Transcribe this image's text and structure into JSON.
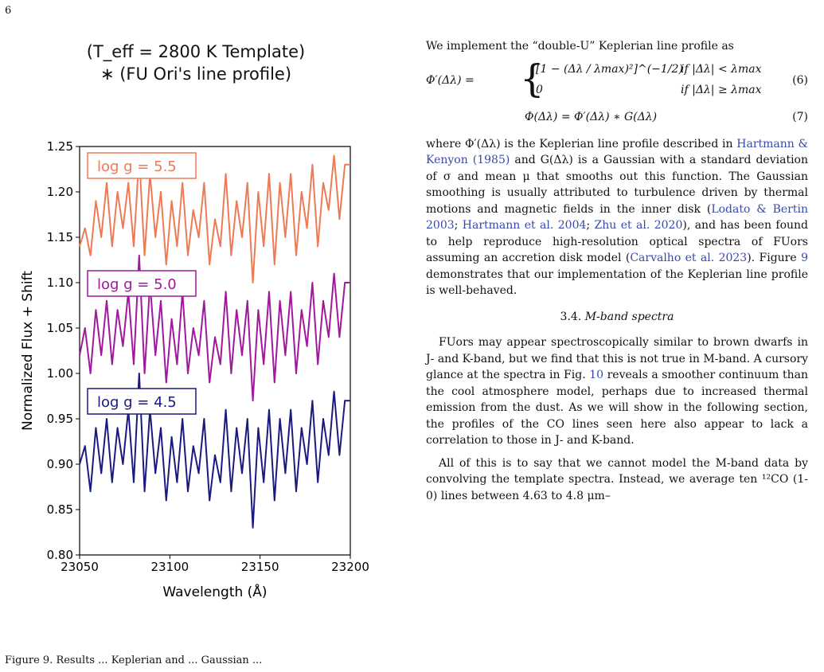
{
  "page_number": "6",
  "figure": {
    "title_line1": "(T_eff = 2800 K Template)",
    "title_line2": "∗ (FU Ori's line profile)",
    "caption_fragment": "Figure 9. Results ... Keplerian and ... Gaussian ...",
    "chart_data": {
      "type": "line",
      "xlabel": "Wavelength (Å)",
      "ylabel": "Normalized Flux + Shift",
      "xlim": [
        23050,
        23200
      ],
      "ylim": [
        0.8,
        1.25
      ],
      "x_ticks": [
        "23050",
        "23100",
        "23150",
        "23200"
      ],
      "y_ticks": [
        "0.80",
        "0.85",
        "0.90",
        "0.95",
        "1.00",
        "1.05",
        "1.10",
        "1.15",
        "1.20",
        "1.25"
      ],
      "grid": false,
      "series": [
        {
          "name": "log g = 5.5",
          "color": "#ee7a55",
          "x": [
            23050,
            23053,
            23056,
            23059,
            23062,
            23065,
            23068,
            23071,
            23074,
            23077,
            23080,
            23083,
            23086,
            23089,
            23092,
            23095,
            23098,
            23101,
            23104,
            23107,
            23110,
            23113,
            23116,
            23119,
            23122,
            23125,
            23128,
            23131,
            23134,
            23137,
            23140,
            23143,
            23146,
            23149,
            23152,
            23155,
            23158,
            23161,
            23164,
            23167,
            23170,
            23173,
            23176,
            23179,
            23182,
            23185,
            23188,
            23191,
            23194,
            23197,
            23200
          ],
          "y": [
            1.14,
            1.16,
            1.13,
            1.19,
            1.15,
            1.21,
            1.14,
            1.2,
            1.16,
            1.21,
            1.14,
            1.24,
            1.13,
            1.22,
            1.15,
            1.2,
            1.12,
            1.19,
            1.14,
            1.21,
            1.13,
            1.18,
            1.15,
            1.21,
            1.12,
            1.17,
            1.14,
            1.22,
            1.13,
            1.19,
            1.15,
            1.21,
            1.1,
            1.2,
            1.14,
            1.22,
            1.12,
            1.21,
            1.15,
            1.22,
            1.13,
            1.2,
            1.16,
            1.23,
            1.14,
            1.21,
            1.18,
            1.24,
            1.17,
            1.23,
            1.23
          ]
        },
        {
          "name": "log g = 5.0",
          "color": "#a0189e",
          "x": [
            23050,
            23053,
            23056,
            23059,
            23062,
            23065,
            23068,
            23071,
            23074,
            23077,
            23080,
            23083,
            23086,
            23089,
            23092,
            23095,
            23098,
            23101,
            23104,
            23107,
            23110,
            23113,
            23116,
            23119,
            23122,
            23125,
            23128,
            23131,
            23134,
            23137,
            23140,
            23143,
            23146,
            23149,
            23152,
            23155,
            23158,
            23161,
            23164,
            23167,
            23170,
            23173,
            23176,
            23179,
            23182,
            23185,
            23188,
            23191,
            23194,
            23197,
            23200
          ],
          "y": [
            1.02,
            1.05,
            1.0,
            1.07,
            1.02,
            1.08,
            1.01,
            1.07,
            1.03,
            1.09,
            1.01,
            1.13,
            1.0,
            1.1,
            1.02,
            1.08,
            0.99,
            1.06,
            1.01,
            1.09,
            1.0,
            1.05,
            1.02,
            1.08,
            0.99,
            1.04,
            1.01,
            1.09,
            1.0,
            1.07,
            1.02,
            1.08,
            0.97,
            1.07,
            1.01,
            1.09,
            0.99,
            1.08,
            1.02,
            1.09,
            1.0,
            1.07,
            1.03,
            1.1,
            1.01,
            1.08,
            1.04,
            1.11,
            1.04,
            1.1,
            1.1
          ]
        },
        {
          "name": "log g = 4.5",
          "color": "#1a1a80",
          "x": [
            23050,
            23053,
            23056,
            23059,
            23062,
            23065,
            23068,
            23071,
            23074,
            23077,
            23080,
            23083,
            23086,
            23089,
            23092,
            23095,
            23098,
            23101,
            23104,
            23107,
            23110,
            23113,
            23116,
            23119,
            23122,
            23125,
            23128,
            23131,
            23134,
            23137,
            23140,
            23143,
            23146,
            23149,
            23152,
            23155,
            23158,
            23161,
            23164,
            23167,
            23170,
            23173,
            23176,
            23179,
            23182,
            23185,
            23188,
            23191,
            23194,
            23197,
            23200
          ],
          "y": [
            0.9,
            0.92,
            0.87,
            0.94,
            0.89,
            0.95,
            0.88,
            0.94,
            0.9,
            0.96,
            0.88,
            1.0,
            0.87,
            0.96,
            0.89,
            0.94,
            0.86,
            0.93,
            0.88,
            0.95,
            0.87,
            0.92,
            0.89,
            0.95,
            0.86,
            0.91,
            0.88,
            0.96,
            0.87,
            0.94,
            0.89,
            0.95,
            0.83,
            0.94,
            0.88,
            0.96,
            0.86,
            0.95,
            0.89,
            0.96,
            0.87,
            0.94,
            0.9,
            0.97,
            0.88,
            0.95,
            0.91,
            0.98,
            0.91,
            0.97,
            0.97
          ]
        }
      ]
    }
  },
  "text": {
    "intro": "We implement the “double-U” Keplerian line profile as",
    "eq6_lhs": "Φ′(Δλ) =",
    "eq6_case1": "[1 − (Δλ / λmax)²]^(−1/2)",
    "eq6_cond1": "if |Δλ| < λmax",
    "eq6_case2": "0",
    "eq6_cond2": "if |Δλ| ≥ λmax",
    "eq6_num": "(6)",
    "eq7": "Φ(Δλ) = Φ′(Δλ) ∗ G(Δλ)",
    "eq7_num": "(7)",
    "para1_a": "where Φ′(Δλ) is the Keplerian line profile described in ",
    "cite_hk": "Hartmann & Kenyon (1985)",
    "para1_b": " and G(Δλ) is a Gaussian with a standard deviation of σ and mean μ that smooths out this function. The Gaussian smoothing is usually attributed to turbulence driven by thermal motions and magnetic fields in the inner disk (",
    "cite_lb": "Lodato & Bertin 2003",
    "para1_c": "; ",
    "cite_h04": "Hartmann et al. 2004",
    "para1_d": "; ",
    "cite_z20": "Zhu et al. 2020",
    "para1_e": "), and has been found to help reproduce high-resolution optical spectra of FUors assuming an accretion disk model (",
    "cite_c23": "Carvalho et al. 2023",
    "para1_f": "). Figure ",
    "fig_ref9": "9",
    "para1_g": " demonstrates that our implementation of the Keplerian line profile is well-behaved.",
    "section_number": "3.4.",
    "section_title": "M-band spectra",
    "para2_a": "FUors may appear spectroscopically similar to brown dwarfs in J- and K-band, but we find that this is not true in M-band. A cursory glance at the spectra in Fig. ",
    "fig_ref10": "10",
    "para2_b": " reveals a smoother continuum than the cool atmosphere model, perhaps due to increased thermal emission from the dust. As we will show in the following section, the profiles of the CO lines seen here also appear to lack a correlation to those in J- and K-band.",
    "para3": "All of this is to say that we cannot model the M-band data by convolving the template spectra. Instead, we average ten ¹²CO (1-0) lines between 4.63 to 4.8 μm–"
  }
}
